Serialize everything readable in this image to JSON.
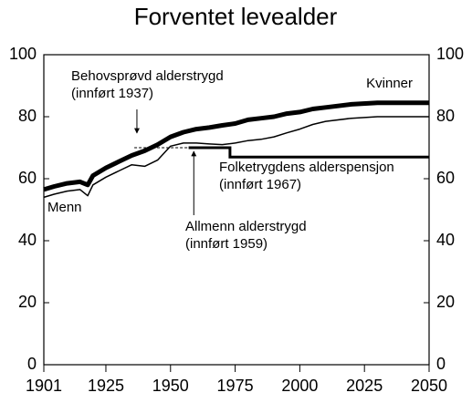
{
  "chart_data": {
    "type": "line",
    "title": "Forventet levealder",
    "x": [
      1901,
      1905,
      1910,
      1915,
      1918,
      1920,
      1925,
      1930,
      1935,
      1940,
      1945,
      1950,
      1955,
      1960,
      1965,
      1970,
      1975,
      1980,
      1985,
      1990,
      1995,
      2000,
      2005,
      2010,
      2020,
      2030,
      2050
    ],
    "series": [
      {
        "name": "Kvinner",
        "color": "#000000",
        "values": [
          56.5,
          57.5,
          58.5,
          59,
          58,
          61,
          63.5,
          65.5,
          67.5,
          69,
          71,
          73.5,
          75,
          76,
          76.5,
          77.2,
          77.8,
          79,
          79.5,
          80,
          81,
          81.5,
          82.5,
          83,
          84,
          84.5,
          84.5
        ]
      },
      {
        "name": "Menn",
        "color": "#000000",
        "values": [
          54,
          55,
          56,
          56.5,
          54.5,
          58,
          60.5,
          62.5,
          64.5,
          64,
          66,
          70.5,
          71.5,
          71.5,
          71.2,
          71,
          71.5,
          72.3,
          72.7,
          73.5,
          74.8,
          76,
          77.5,
          78.5,
          79.5,
          80,
          80
        ]
      }
    ],
    "pension_age_dashed": {
      "x": [
        1936,
        1957
      ],
      "y": [
        70,
        70
      ]
    },
    "pension_age": {
      "x": [
        1957,
        1973,
        1973,
        2050
      ],
      "y": [
        70,
        70,
        67,
        67
      ]
    },
    "annotations": [
      {
        "lines": [
          "Behovsprøvd alderstrygd",
          "(innført 1937)"
        ],
        "x": 1937
      },
      {
        "lines": [
          "Allmenn alderstrygd",
          "(innført 1959)"
        ],
        "x": 1959
      },
      {
        "lines": [
          "Folketrygdens alderspensjon",
          "(innført 1967)"
        ]
      }
    ],
    "xlim": [
      1901,
      2050
    ],
    "xticks": [
      1901,
      1925,
      1950,
      1975,
      2000,
      2025,
      2050
    ],
    "ylim": [
      0,
      100
    ],
    "yticks": [
      0,
      20,
      40,
      60,
      80,
      100
    ]
  }
}
